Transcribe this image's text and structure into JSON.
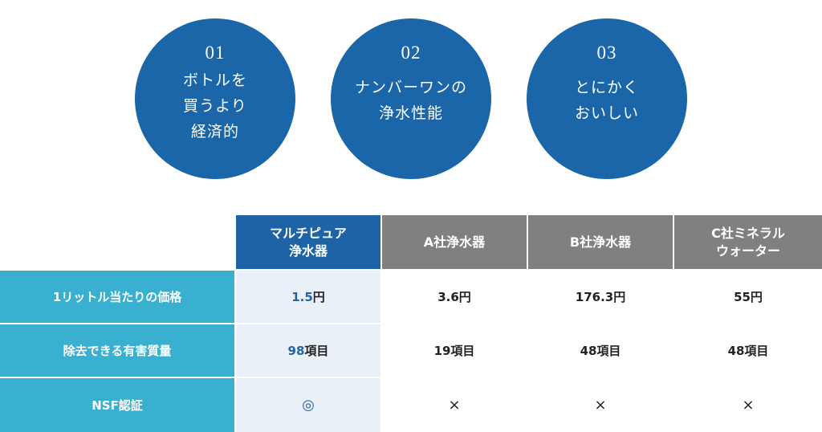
{
  "features": [
    {
      "number": "01",
      "lines": [
        "ボトルを",
        "買うより",
        "経済的"
      ]
    },
    {
      "number": "02",
      "lines": [
        "ナンバーワンの",
        "浄水性能"
      ]
    },
    {
      "number": "03",
      "lines": [
        "とにかく",
        "おいしい"
      ]
    }
  ],
  "table": {
    "headers": [
      {
        "lines": [
          "マルチピュア",
          "浄水器"
        ]
      },
      {
        "lines": [
          "A社浄水器"
        ]
      },
      {
        "lines": [
          "B社浄水器"
        ]
      },
      {
        "lines": [
          "C社ミネラル",
          "ウォーター"
        ]
      }
    ],
    "rows": [
      {
        "label": "1リットル当たりの価格",
        "cells": [
          {
            "highlight": "1.5",
            "rest": "円"
          },
          {
            "highlight": "",
            "rest": "3.6円"
          },
          {
            "highlight": "",
            "rest": "176.3円"
          },
          {
            "highlight": "",
            "rest": "55円"
          }
        ]
      },
      {
        "label": "除去できる有害質量",
        "cells": [
          {
            "highlight": "98",
            "rest": "項目"
          },
          {
            "highlight": "",
            "rest": "19項目"
          },
          {
            "highlight": "",
            "rest": "48項目"
          },
          {
            "highlight": "",
            "rest": "48項目"
          }
        ]
      },
      {
        "label": "NSF認証",
        "cells": [
          {
            "highlight": "",
            "rest": "◎"
          },
          {
            "highlight": "",
            "rest": "×"
          },
          {
            "highlight": "",
            "rest": "×"
          },
          {
            "highlight": "",
            "rest": "×"
          }
        ]
      }
    ]
  },
  "colors": {
    "circle": "#1a66a8",
    "main_header": "#1d63a6",
    "other_header": "#808080",
    "row_header": "#3ab0d0",
    "main_column": "#e9f0f8"
  }
}
